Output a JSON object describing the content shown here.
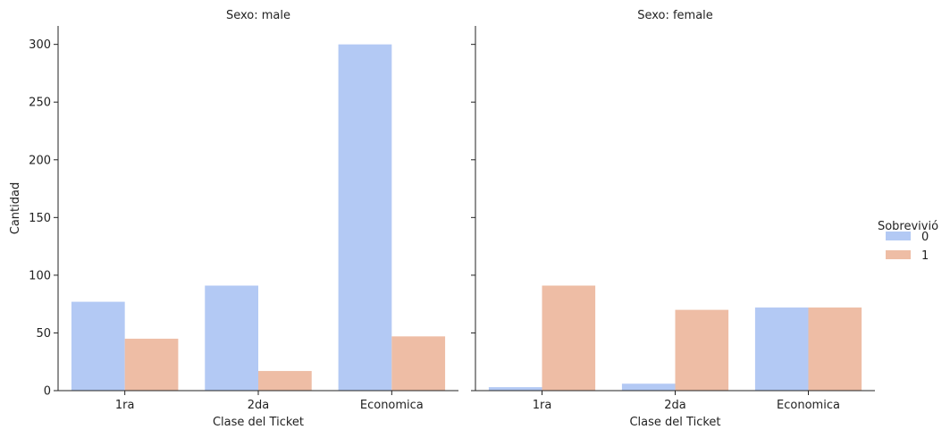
{
  "chart_data": {
    "type": "bar",
    "facet_var_label": "Sexo",
    "categories": [
      "1ra",
      "2da",
      "Economica"
    ],
    "xlabel": "Clase del Ticket",
    "ylabel": "Cantidad",
    "ylim": [
      0,
      316
    ],
    "yticks": [
      0,
      50,
      100,
      150,
      200,
      250,
      300
    ],
    "grid": false,
    "legend": {
      "title": "Sobrevivió",
      "placement": "right",
      "entries": [
        {
          "label": "0",
          "color": "#b3c9f4"
        },
        {
          "label": "1",
          "color": "#eebda5"
        }
      ]
    },
    "facets": [
      {
        "title": "Sexo: male",
        "series": [
          {
            "name": "0",
            "values": [
              77,
              91,
              300
            ]
          },
          {
            "name": "1",
            "values": [
              45,
              17,
              47
            ]
          }
        ]
      },
      {
        "title": "Sexo: female",
        "series": [
          {
            "name": "0",
            "values": [
              3,
              6,
              72
            ]
          },
          {
            "name": "1",
            "values": [
              91,
              70,
              72
            ]
          }
        ]
      }
    ]
  }
}
